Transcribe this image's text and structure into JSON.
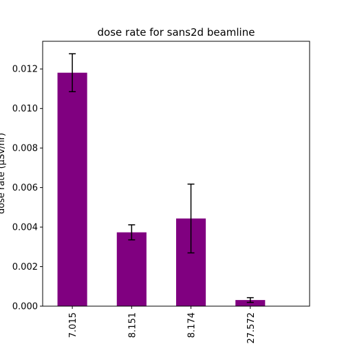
{
  "chart_data": {
    "type": "bar",
    "title": "dose rate for sans2d beamline",
    "ylabel": "dose rate (µSv/hr)",
    "xlabel": "",
    "categories": [
      "7.015",
      "8.151",
      "8.174",
      "27.572"
    ],
    "values": [
      0.01181,
      0.003735,
      0.004435,
      0.00031
    ],
    "errors": [
      0.00096,
      0.00038,
      0.00174,
      0.00012
    ],
    "ylim": [
      0,
      0.0134
    ],
    "yticks": [
      "0.000",
      "0.002",
      "0.004",
      "0.006",
      "0.008",
      "0.010",
      "0.012"
    ],
    "ytick_values": [
      0,
      0.002,
      0.004,
      0.006,
      0.008,
      0.01,
      0.012
    ],
    "grid": false,
    "bar_color": "#800080",
    "errorbar_color": "#000000"
  }
}
